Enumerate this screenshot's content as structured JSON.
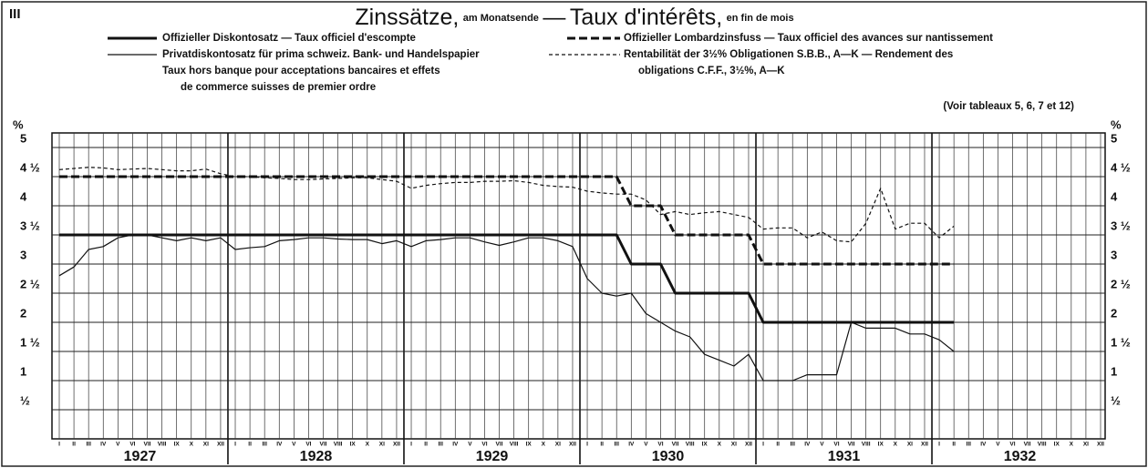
{
  "chart_data": {
    "type": "line",
    "figure_number": "III",
    "title": "Zinssätze,",
    "title_sub": "am Monatsende",
    "title_dash": "—",
    "title_fr": "Taux d'intérêts,",
    "title_fr_sub": "en fin de mois",
    "note": "(Voir tableaux 5, 6, 7 et 12)",
    "y_unit": "%",
    "categories": [
      "I",
      "II",
      "III",
      "IV",
      "V",
      "VI",
      "VII",
      "VIII",
      "IX",
      "X",
      "XI",
      "XII",
      "I",
      "II",
      "III",
      "IV",
      "V",
      "VI",
      "VII",
      "VIII",
      "IX",
      "X",
      "XI",
      "XII",
      "I",
      "II",
      "III",
      "IV",
      "V",
      "VI",
      "VII",
      "VIII",
      "IX",
      "X",
      "XI",
      "XII",
      "I",
      "II",
      "III",
      "IV",
      "V",
      "VI",
      "VII",
      "VIII",
      "IX",
      "X",
      "XI",
      "XII",
      "I",
      "II",
      "III",
      "IV",
      "V",
      "VI",
      "VII",
      "VIII",
      "IX",
      "X",
      "XI",
      "XII",
      "I",
      "II",
      "III",
      "IV",
      "V",
      "VI",
      "VII",
      "VIII",
      "IX",
      "X",
      "XI",
      "XII"
    ],
    "years": [
      "1927",
      "1928",
      "1929",
      "1930",
      "1931",
      "1932"
    ],
    "ylim": [
      0,
      5.25
    ],
    "yticks": [
      {
        "value": 0.5,
        "label": "½"
      },
      1,
      {
        "value": 1.5,
        "label": "1 ½"
      },
      2,
      {
        "value": 2.5,
        "label": "2 ½"
      },
      3,
      {
        "value": 3.5,
        "label": "3 ½"
      },
      4,
      {
        "value": 4.5,
        "label": "4 ½"
      },
      5
    ],
    "grid": true,
    "series": [
      {
        "name": "Offizieller Diskontosatz — Taux officiel d'escompte",
        "color": "#111111",
        "width": 3,
        "dash": "solid",
        "values": [
          3.5,
          3.5,
          3.5,
          3.5,
          3.5,
          3.5,
          3.5,
          3.5,
          3.5,
          3.5,
          3.5,
          3.5,
          3.5,
          3.5,
          3.5,
          3.5,
          3.5,
          3.5,
          3.5,
          3.5,
          3.5,
          3.5,
          3.5,
          3.5,
          3.5,
          3.5,
          3.5,
          3.5,
          3.5,
          3.5,
          3.5,
          3.5,
          3.5,
          3.5,
          3.5,
          3.5,
          3.5,
          3.5,
          3.5,
          3,
          3,
          3,
          2.5,
          2.5,
          2.5,
          2.5,
          2.5,
          2.5,
          2,
          2,
          2,
          2,
          2,
          2,
          2,
          2,
          2,
          2,
          2,
          2,
          2,
          2,
          null,
          null,
          null,
          null,
          null,
          null,
          null,
          null,
          null,
          null
        ]
      },
      {
        "name": "Offizieller Lombardzinsfuss — Taux officiel des avances sur nantissement",
        "color": "#111111",
        "width": 3,
        "dash": "dashed",
        "values": [
          4.5,
          4.5,
          4.5,
          4.5,
          4.5,
          4.5,
          4.5,
          4.5,
          4.5,
          4.5,
          4.5,
          4.5,
          4.5,
          4.5,
          4.5,
          4.5,
          4.5,
          4.5,
          4.5,
          4.5,
          4.5,
          4.5,
          4.5,
          4.5,
          4.5,
          4.5,
          4.5,
          4.5,
          4.5,
          4.5,
          4.5,
          4.5,
          4.5,
          4.5,
          4.5,
          4.5,
          4.5,
          4.5,
          4.5,
          4,
          4,
          4,
          3.5,
          3.5,
          3.5,
          3.5,
          3.5,
          3.5,
          3,
          3,
          3,
          3,
          3,
          3,
          3,
          3,
          3,
          3,
          3,
          3,
          3,
          3,
          null,
          null,
          null,
          null,
          null,
          null,
          null,
          null,
          null,
          null
        ]
      },
      {
        "name": "Privatdiskontosatz für prima schweiz. Bank- und Handelspapier",
        "name_lines": [
          "Taux hors banque pour acceptations bancaires et effets",
          "de commerce suisses de premier ordre"
        ],
        "color": "#111111",
        "width": 1.2,
        "dash": "solid",
        "values": [
          2.8,
          2.95,
          3.25,
          3.3,
          3.45,
          3.5,
          3.5,
          3.45,
          3.4,
          3.45,
          3.4,
          3.45,
          3.25,
          3.28,
          3.3,
          3.4,
          3.42,
          3.45,
          3.45,
          3.43,
          3.42,
          3.42,
          3.35,
          3.4,
          3.3,
          3.4,
          3.42,
          3.45,
          3.45,
          3.38,
          3.32,
          3.38,
          3.45,
          3.45,
          3.4,
          3.3,
          2.75,
          2.5,
          2.45,
          2.5,
          2.15,
          2,
          1.85,
          1.75,
          1.45,
          1.35,
          1.25,
          1.45,
          1,
          1,
          1,
          1.1,
          1.1,
          1.1,
          2,
          1.9,
          1.9,
          1.9,
          1.8,
          1.8,
          1.7,
          1.5,
          null,
          null,
          null,
          null,
          null,
          null,
          null,
          null,
          null,
          null
        ]
      },
      {
        "name": "Rentabilität der 3½% Obligationen S.B.B., A—K — Rendement des",
        "name_lines": [
          "obligations C.F.F., 3½%, A—K"
        ],
        "color": "#111111",
        "width": 1.2,
        "dash": "dotted",
        "values": [
          4.62,
          4.64,
          4.66,
          4.65,
          4.62,
          4.63,
          4.64,
          4.62,
          4.6,
          4.6,
          4.63,
          4.55,
          4.5,
          4.5,
          4.48,
          4.47,
          4.45,
          4.45,
          4.46,
          4.47,
          4.48,
          4.48,
          4.45,
          4.42,
          4.3,
          4.35,
          4.38,
          4.4,
          4.4,
          4.42,
          4.42,
          4.43,
          4.4,
          4.35,
          4.33,
          4.32,
          4.25,
          4.22,
          4.2,
          4.2,
          4.1,
          3.85,
          3.9,
          3.85,
          3.88,
          3.9,
          3.85,
          3.8,
          3.6,
          3.62,
          3.62,
          3.45,
          3.55,
          3.4,
          3.38,
          3.7,
          4.3,
          3.6,
          3.7,
          3.7,
          3.45,
          3.65,
          null,
          null,
          null,
          null,
          null,
          null,
          null,
          null,
          null,
          null
        ]
      }
    ]
  }
}
